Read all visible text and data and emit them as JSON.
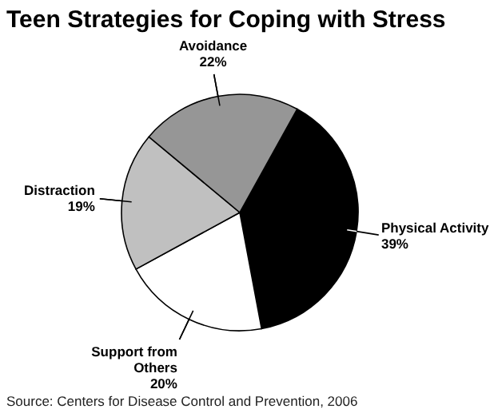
{
  "chart_data": {
    "type": "pie",
    "title": "Teen Strategies for Coping with Stress",
    "categories": [
      "Physical Activity",
      "Support from Others",
      "Distraction",
      "Avoidance"
    ],
    "values": [
      39,
      20,
      19,
      22
    ],
    "colors": [
      "#000000",
      "#ffffff",
      "#c0c0c0",
      "#969696"
    ],
    "annotations": [
      "Source: Centers for Disease Control and Prevention, 2006"
    ],
    "value_labels": [
      "39%",
      "20%",
      "19%",
      "22%"
    ]
  }
}
